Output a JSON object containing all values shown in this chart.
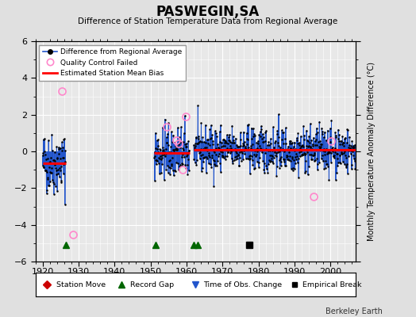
{
  "title": "PASWEGIN,SA",
  "subtitle": "Difference of Station Temperature Data from Regional Average",
  "ylabel": "Monthly Temperature Anomaly Difference (°C)",
  "bg_color": "#e0e0e0",
  "plot_bg_color": "#e8e8e8",
  "xlim": [
    1918,
    2007
  ],
  "ylim": [
    -6,
    6
  ],
  "yticks": [
    -6,
    -4,
    -2,
    0,
    2,
    4,
    6
  ],
  "xticks": [
    1920,
    1930,
    1940,
    1950,
    1960,
    1970,
    1980,
    1990,
    2000
  ],
  "grid_color": "#ffffff",
  "line_color": "#2255cc",
  "dot_color": "#000000",
  "bias_color": "#ff0000",
  "qc_color": "#ff88cc",
  "berkeley_earth_text": "Berkeley Earth",
  "segments": [
    {
      "start": 1920.0,
      "end": 1926.5,
      "bias": -0.65
    },
    {
      "start": 1951.0,
      "end": 1960.8,
      "bias": -0.1
    },
    {
      "start": 1962.0,
      "end": 2006.9,
      "bias": 0.1
    }
  ],
  "record_gaps": [
    1926.5,
    1951.5,
    1962.0,
    1963.0
  ],
  "station_moves": [],
  "obs_changes": [],
  "empirical_breaks": [
    1977.5
  ],
  "qc_failed_approx": [
    [
      1925.3,
      3.3
    ],
    [
      1928.5,
      -4.55
    ],
    [
      1954.5,
      1.35
    ],
    [
      1957.2,
      0.6
    ],
    [
      1957.8,
      0.45
    ],
    [
      1958.8,
      -1.0
    ],
    [
      1959.8,
      1.9
    ],
    [
      1995.3,
      -2.45
    ],
    [
      2000.2,
      0.55
    ]
  ],
  "seg1_scale": 0.85,
  "seg2_scale": 0.75,
  "seg3_scale": 0.62,
  "seed": 42
}
